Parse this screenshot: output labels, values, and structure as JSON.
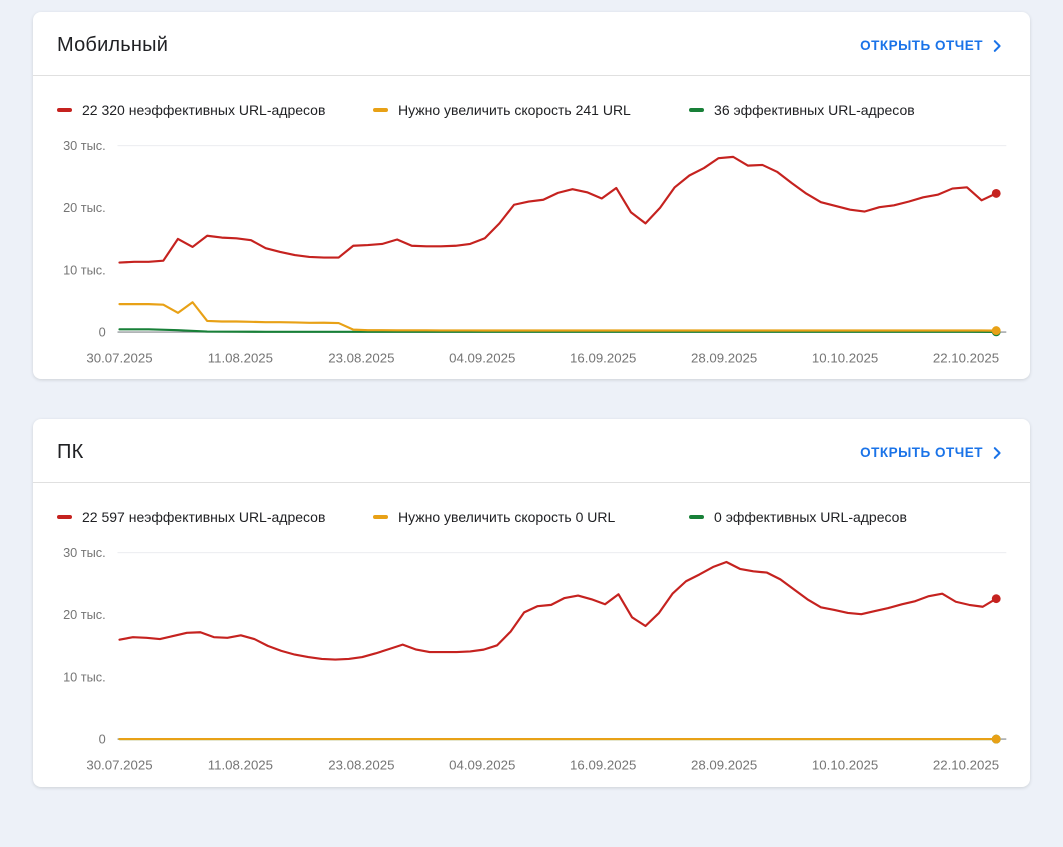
{
  "colors": {
    "link_blue": "#1a73e8",
    "poor_red": "#c5221f",
    "needs_improvement_orange": "#e8a116",
    "good_green": "#188038",
    "page_background": "#edf1f8"
  },
  "cards": [
    {
      "title": "Мобильный",
      "open_report": "ОТКРЫТЬ ОТЧЕТ"
    },
    {
      "title": "ПК",
      "open_report": "ОТКРЫТЬ ОТЧЕТ"
    }
  ],
  "chart_data": [
    {
      "type": "line",
      "title": "Мобильный",
      "xlabel": "",
      "ylabel": "",
      "x_tick_labels": [
        "30.07.2025",
        "11.08.2025",
        "23.08.2025",
        "04.09.2025",
        "16.09.2025",
        "28.09.2025",
        "10.10.2025",
        "22.10.2025"
      ],
      "x_tick_days": [
        0,
        12,
        24,
        36,
        48,
        60,
        72,
        84
      ],
      "x_range_days": [
        0,
        88
      ],
      "data_end_day": 87,
      "ytick_values": [
        0,
        10000,
        20000,
        30000
      ],
      "ytick_labels": [
        "0",
        "10 тыс.",
        "20 тыс.",
        "30 тыс."
      ],
      "ylim": [
        0,
        30000
      ],
      "grid": "top-line-and-baseline",
      "legend_position": "top",
      "series": [
        {
          "name": "22 320 неэффективных URL-адресов",
          "color": "#c5221f",
          "current": 22320,
          "values": [
            11200,
            11300,
            11300,
            11500,
            15000,
            13700,
            15500,
            15200,
            15100,
            14800,
            13500,
            12900,
            12400,
            12100,
            12000,
            12000,
            13900,
            14000,
            14200,
            14900,
            13900,
            13800,
            13800,
            13900,
            14200,
            15100,
            17500,
            20500,
            21000,
            21300,
            22400,
            23000,
            22500,
            21500,
            23200,
            19300,
            17500,
            20000,
            23300,
            25200,
            26400,
            28000,
            28200,
            26800,
            26900,
            25800,
            24000,
            22300,
            20900,
            20300,
            19700,
            19400,
            20100,
            20400,
            21000,
            21700,
            22100,
            23100,
            23300,
            21200,
            22320
          ]
        },
        {
          "name": "Нужно увеличить скорость 241 URL",
          "color": "#e8a116",
          "current": 241,
          "values": [
            4500,
            4500,
            4500,
            4400,
            3100,
            4800,
            1800,
            1700,
            1700,
            1650,
            1600,
            1600,
            1550,
            1500,
            1500,
            1450,
            400,
            300,
            300,
            290,
            280,
            280,
            270,
            270,
            270,
            260,
            260,
            260,
            260,
            260,
            255,
            255,
            255,
            250,
            250,
            250,
            250,
            250,
            250,
            250,
            250,
            250,
            250,
            250,
            250,
            250,
            250,
            250,
            250,
            250,
            250,
            250,
            250,
            250,
            250,
            250,
            250,
            250,
            250,
            245,
            241
          ]
        },
        {
          "name": "36 эффективных URL-адресов",
          "color": "#188038",
          "current": 36,
          "values": [
            450,
            450,
            300,
            80,
            60,
            50,
            50,
            50,
            50,
            50,
            50,
            50,
            50,
            50,
            50,
            50,
            50,
            50,
            50,
            50,
            50,
            50,
            50,
            50,
            50,
            50,
            50,
            50,
            50,
            40,
            36
          ]
        }
      ]
    },
    {
      "type": "line",
      "title": "ПК",
      "xlabel": "",
      "ylabel": "",
      "x_tick_labels": [
        "30.07.2025",
        "11.08.2025",
        "23.08.2025",
        "04.09.2025",
        "16.09.2025",
        "28.09.2025",
        "10.10.2025",
        "22.10.2025"
      ],
      "x_tick_days": [
        0,
        12,
        24,
        36,
        48,
        60,
        72,
        84
      ],
      "x_range_days": [
        0,
        88
      ],
      "data_end_day": 87,
      "ytick_values": [
        0,
        10000,
        20000,
        30000
      ],
      "ytick_labels": [
        "0",
        "10 тыс.",
        "20 тыс.",
        "30 тыс."
      ],
      "ylim": [
        0,
        30000
      ],
      "grid": "top-line-and-baseline",
      "legend_position": "top",
      "series": [
        {
          "name": "22 597 неэффективных URL-адресов",
          "color": "#c5221f",
          "current": 22597,
          "values": [
            16000,
            16400,
            16300,
            16100,
            16600,
            17100,
            17200,
            16400,
            16300,
            16700,
            16100,
            15000,
            14200,
            13600,
            13200,
            12900,
            12800,
            12900,
            13200,
            13800,
            14500,
            15200,
            14400,
            14000,
            14000,
            14000,
            14100,
            14400,
            15100,
            17300,
            20400,
            21400,
            21600,
            22700,
            23100,
            22500,
            21700,
            23300,
            19600,
            18200,
            20300,
            23400,
            25400,
            26500,
            27700,
            28500,
            27400,
            27000,
            26800,
            25700,
            24100,
            22500,
            21200,
            20800,
            20300,
            20100,
            20600,
            21100,
            21700,
            22200,
            23000,
            23400,
            22100,
            21600,
            21300,
            22597
          ]
        },
        {
          "name": "Нужно увеличить скорость 0 URL",
          "color": "#e8a116",
          "current": 0,
          "values": [
            0,
            0
          ]
        },
        {
          "name": "0 эффективных URL-адресов",
          "color": "#188038",
          "current": 0,
          "values": [
            0,
            0
          ]
        }
      ]
    }
  ]
}
